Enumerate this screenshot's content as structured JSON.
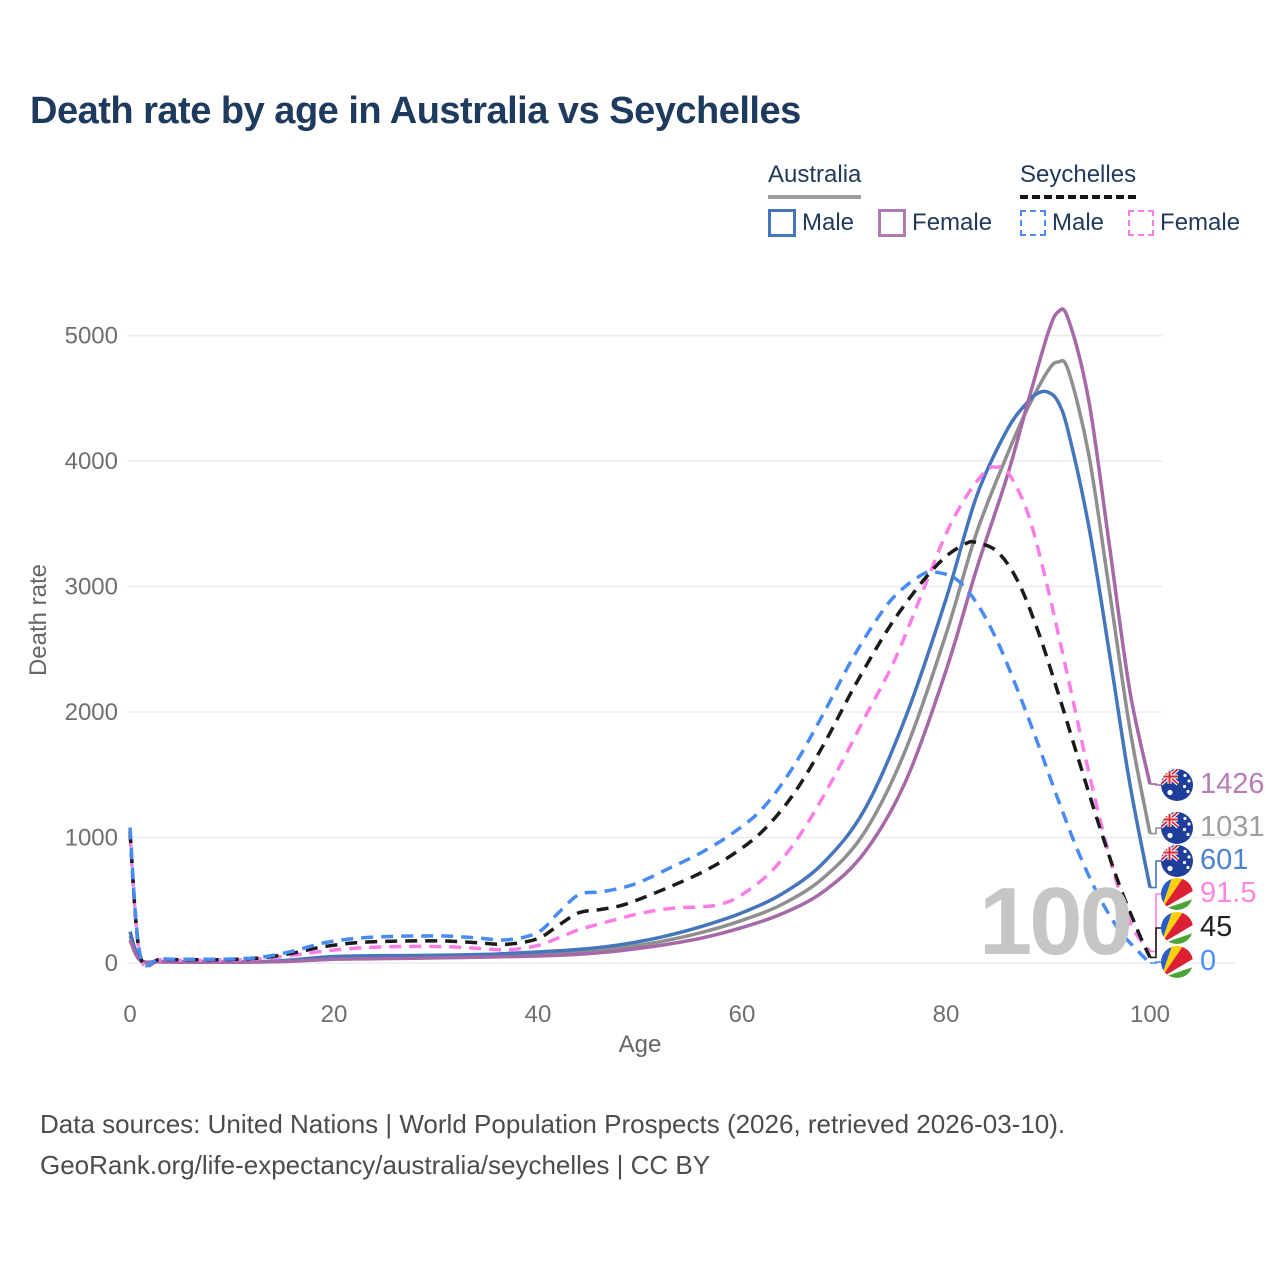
{
  "title": "Death rate by age in Australia vs Seychelles",
  "legend": {
    "groups": [
      {
        "country": "Australia",
        "line_style": "solid",
        "underline_color": "#9e9e9e",
        "items": [
          {
            "label": "Male",
            "color": "#4575ba"
          },
          {
            "label": "Female",
            "color": "#b07ab2"
          }
        ]
      },
      {
        "country": "Seychelles",
        "line_style": "dashed",
        "underline_color": "#141414",
        "items": [
          {
            "label": "Male",
            "color": "#478bf3"
          },
          {
            "label": "Female",
            "color": "#fb7de7"
          }
        ]
      }
    ]
  },
  "watermark": "100",
  "footer": {
    "line1": "Data sources: United Nations | World Population Prospects (2026, retrieved 2026-03-10).",
    "line2": "GeoRank.org/life-expectancy/australia/seychelles | CC BY"
  },
  "chart_data": {
    "type": "line",
    "title": "Death rate by age in Australia vs Seychelles",
    "xlabel": "Age",
    "ylabel": "Death rate",
    "xlim": [
      0,
      100
    ],
    "ylim": [
      0,
      5000
    ],
    "x_ticks": [
      0,
      20,
      40,
      60,
      80,
      100
    ],
    "y_ticks": [
      0,
      1000,
      2000,
      3000,
      4000,
      5000
    ],
    "grid": "horizontal",
    "legend_position": "top-right",
    "series": [
      {
        "name": "Australia (both sexes)",
        "color": "#8f8f8f",
        "dash": false,
        "end_label": "1031",
        "points": [
          [
            0,
            215
          ],
          [
            1,
            24
          ],
          [
            3,
            10
          ],
          [
            6,
            7
          ],
          [
            10,
            7
          ],
          [
            14,
            12
          ],
          [
            17,
            26
          ],
          [
            20,
            42
          ],
          [
            24,
            47
          ],
          [
            28,
            50
          ],
          [
            32,
            54
          ],
          [
            36,
            60
          ],
          [
            40,
            70
          ],
          [
            44,
            88
          ],
          [
            48,
            120
          ],
          [
            52,
            170
          ],
          [
            56,
            242
          ],
          [
            60,
            340
          ],
          [
            64,
            470
          ],
          [
            68,
            680
          ],
          [
            72,
            1040
          ],
          [
            76,
            1690
          ],
          [
            80,
            2620
          ],
          [
            83,
            3430
          ],
          [
            86,
            4050
          ],
          [
            88,
            4420
          ],
          [
            90,
            4720
          ],
          [
            91,
            4790
          ],
          [
            92,
            4720
          ],
          [
            94,
            4050
          ],
          [
            96,
            2980
          ],
          [
            98,
            1880
          ],
          [
            100,
            1031
          ]
        ]
      },
      {
        "name": "Australia Male",
        "color": "#4575ba",
        "dash": false,
        "end_label": "601",
        "points": [
          [
            0,
            250
          ],
          [
            1,
            28
          ],
          [
            3,
            12
          ],
          [
            6,
            8
          ],
          [
            10,
            8
          ],
          [
            14,
            14
          ],
          [
            17,
            32
          ],
          [
            20,
            52
          ],
          [
            24,
            58
          ],
          [
            28,
            60
          ],
          [
            32,
            64
          ],
          [
            36,
            72
          ],
          [
            40,
            88
          ],
          [
            44,
            108
          ],
          [
            48,
            145
          ],
          [
            52,
            205
          ],
          [
            56,
            290
          ],
          [
            60,
            400
          ],
          [
            64,
            555
          ],
          [
            68,
            800
          ],
          [
            72,
            1220
          ],
          [
            76,
            1950
          ],
          [
            80,
            2900
          ],
          [
            83,
            3720
          ],
          [
            86,
            4250
          ],
          [
            88,
            4470
          ],
          [
            89,
            4540
          ],
          [
            90,
            4550
          ],
          [
            91,
            4470
          ],
          [
            92,
            4230
          ],
          [
            94,
            3480
          ],
          [
            96,
            2480
          ],
          [
            98,
            1440
          ],
          [
            100,
            601
          ]
        ]
      },
      {
        "name": "Australia Female",
        "color": "#a469a6",
        "dash": false,
        "end_label": "1426",
        "points": [
          [
            0,
            185
          ],
          [
            1,
            20
          ],
          [
            3,
            9
          ],
          [
            6,
            6
          ],
          [
            10,
            6
          ],
          [
            14,
            10
          ],
          [
            17,
            18
          ],
          [
            20,
            30
          ],
          [
            24,
            34
          ],
          [
            28,
            38
          ],
          [
            32,
            43
          ],
          [
            36,
            49
          ],
          [
            40,
            56
          ],
          [
            44,
            70
          ],
          [
            48,
            98
          ],
          [
            52,
            140
          ],
          [
            56,
            198
          ],
          [
            60,
            282
          ],
          [
            64,
            395
          ],
          [
            68,
            570
          ],
          [
            72,
            880
          ],
          [
            76,
            1440
          ],
          [
            80,
            2330
          ],
          [
            83,
            3140
          ],
          [
            86,
            3880
          ],
          [
            88,
            4460
          ],
          [
            90,
            5020
          ],
          [
            91,
            5190
          ],
          [
            92,
            5130
          ],
          [
            94,
            4480
          ],
          [
            96,
            3340
          ],
          [
            98,
            2180
          ],
          [
            100,
            1426
          ]
        ]
      },
      {
        "name": "Seychelles Female",
        "color": "#fb7de7",
        "dash": true,
        "end_label": "91.5",
        "points": [
          [
            0,
            1020
          ],
          [
            1,
            50
          ],
          [
            3,
            26
          ],
          [
            6,
            22
          ],
          [
            10,
            24
          ],
          [
            13,
            36
          ],
          [
            16,
            62
          ],
          [
            19,
            95
          ],
          [
            22,
            118
          ],
          [
            25,
            128
          ],
          [
            28,
            132
          ],
          [
            31,
            130
          ],
          [
            34,
            118
          ],
          [
            37,
            105
          ],
          [
            40,
            140
          ],
          [
            42,
            200
          ],
          [
            44,
            265
          ],
          [
            46,
            310
          ],
          [
            48,
            355
          ],
          [
            50,
            395
          ],
          [
            52,
            425
          ],
          [
            54,
            442
          ],
          [
            56,
            448
          ],
          [
            58,
            470
          ],
          [
            60,
            545
          ],
          [
            63,
            740
          ],
          [
            66,
            1060
          ],
          [
            69,
            1480
          ],
          [
            72,
            1950
          ],
          [
            75,
            2420
          ],
          [
            78,
            3020
          ],
          [
            80,
            3420
          ],
          [
            82,
            3720
          ],
          [
            84,
            3930
          ],
          [
            85,
            3950
          ],
          [
            86,
            3920
          ],
          [
            88,
            3590
          ],
          [
            90,
            2980
          ],
          [
            92,
            2260
          ],
          [
            94,
            1520
          ],
          [
            96,
            860
          ],
          [
            98,
            330
          ],
          [
            100,
            91.5
          ]
        ]
      },
      {
        "name": "Seychelles (both sexes)",
        "color": "#1b1b1b",
        "dash": true,
        "end_label": "45",
        "points": [
          [
            0,
            1050
          ],
          [
            1,
            56
          ],
          [
            3,
            30
          ],
          [
            6,
            26
          ],
          [
            10,
            28
          ],
          [
            13,
            42
          ],
          [
            16,
            80
          ],
          [
            19,
            130
          ],
          [
            22,
            160
          ],
          [
            25,
            172
          ],
          [
            28,
            176
          ],
          [
            31,
            175
          ],
          [
            34,
            162
          ],
          [
            37,
            150
          ],
          [
            40,
            195
          ],
          [
            42,
            300
          ],
          [
            44,
            400
          ],
          [
            46,
            425
          ],
          [
            48,
            455
          ],
          [
            50,
            510
          ],
          [
            53,
            610
          ],
          [
            56,
            720
          ],
          [
            59,
            860
          ],
          [
            62,
            1050
          ],
          [
            65,
            1340
          ],
          [
            68,
            1740
          ],
          [
            71,
            2200
          ],
          [
            74,
            2620
          ],
          [
            76,
            2860
          ],
          [
            78,
            3070
          ],
          [
            80,
            3240
          ],
          [
            82,
            3345
          ],
          [
            83,
            3350
          ],
          [
            85,
            3280
          ],
          [
            87,
            3050
          ],
          [
            89,
            2650
          ],
          [
            91,
            2150
          ],
          [
            93,
            1620
          ],
          [
            95,
            1100
          ],
          [
            97,
            620
          ],
          [
            99,
            220
          ],
          [
            100,
            45
          ]
        ]
      },
      {
        "name": "Seychelles Male",
        "color": "#478bf3",
        "dash": true,
        "end_label": "0",
        "points": [
          [
            0,
            1080
          ],
          [
            1,
            62
          ],
          [
            3,
            34
          ],
          [
            6,
            30
          ],
          [
            10,
            32
          ],
          [
            13,
            48
          ],
          [
            16,
            95
          ],
          [
            19,
            160
          ],
          [
            22,
            195
          ],
          [
            25,
            210
          ],
          [
            28,
            215
          ],
          [
            31,
            215
          ],
          [
            34,
            200
          ],
          [
            37,
            185
          ],
          [
            40,
            245
          ],
          [
            42,
            400
          ],
          [
            44,
            545
          ],
          [
            46,
            565
          ],
          [
            48,
            595
          ],
          [
            50,
            645
          ],
          [
            53,
            760
          ],
          [
            56,
            880
          ],
          [
            59,
            1030
          ],
          [
            62,
            1230
          ],
          [
            65,
            1560
          ],
          [
            68,
            1990
          ],
          [
            71,
            2450
          ],
          [
            74,
            2830
          ],
          [
            76,
            3000
          ],
          [
            78,
            3110
          ],
          [
            79,
            3115
          ],
          [
            81,
            3060
          ],
          [
            83,
            2870
          ],
          [
            85,
            2570
          ],
          [
            87,
            2180
          ],
          [
            89,
            1750
          ],
          [
            91,
            1300
          ],
          [
            93,
            880
          ],
          [
            95,
            530
          ],
          [
            97,
            260
          ],
          [
            99,
            80
          ],
          [
            100,
            0
          ]
        ]
      }
    ],
    "end_labels": [
      {
        "label": "1426",
        "text_color": "#b77cb9",
        "line_color": "#a469a6",
        "flag": "au",
        "value": 1426
      },
      {
        "label": "1031",
        "text_color": "#9e9e9e",
        "line_color": "#8f8f8f",
        "flag": "au",
        "value": 1031
      },
      {
        "label": "601",
        "text_color": "#4b82cf",
        "line_color": "#4575ba",
        "flag": "au",
        "value": 601
      },
      {
        "label": "91.5",
        "text_color": "#fc86e3",
        "line_color": "#fb7de7",
        "flag": "sc",
        "value": 91.5
      },
      {
        "label": "45",
        "text_color": "#222222",
        "line_color": "#1b1b1b",
        "flag": "sc",
        "value": 45
      },
      {
        "label": "0",
        "text_color": "#4a8ff5",
        "line_color": "#478bf3",
        "flag": "sc",
        "value": 0
      }
    ],
    "colors": {
      "grid": "#ebebeb",
      "tick_text": "#6f6f6f",
      "axis_title": "#666666",
      "title_text": "#1e3a5e",
      "watermark": "#c6c6c6"
    }
  }
}
